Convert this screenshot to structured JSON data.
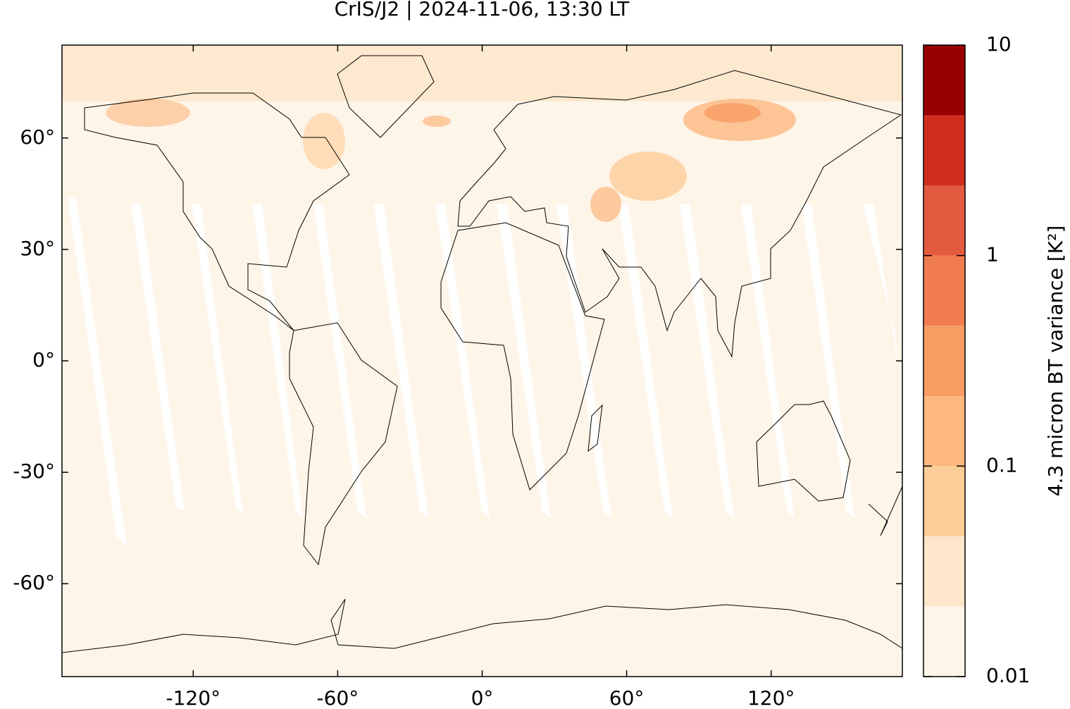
{
  "chart_data": {
    "type": "map",
    "title": "CrIS/J2 | 2024-11-06, 13:30 LT",
    "xlim": [
      -174.5,
      174.5
    ],
    "ylim": [
      -85,
      85
    ],
    "xticks": [
      {
        "value": -120,
        "label": "-120°"
      },
      {
        "value": -60,
        "label": "-60°"
      },
      {
        "value": 0,
        "label": "0°"
      },
      {
        "value": 60,
        "label": "60°"
      },
      {
        "value": 120,
        "label": "120°"
      }
    ],
    "yticks": [
      {
        "value": -60,
        "label": "-60°"
      },
      {
        "value": -30,
        "label": "-30°"
      },
      {
        "value": 0,
        "label": "0°"
      },
      {
        "value": 30,
        "label": "30°"
      },
      {
        "value": 60,
        "label": "60°"
      }
    ],
    "colorbar": {
      "label": "4.3 micron BT variance [K²]",
      "scale": "log",
      "lim": [
        0.01,
        10
      ],
      "ticks": [
        0.01,
        0.1,
        1,
        10
      ],
      "levels": [
        0.01,
        0.0215,
        0.0464,
        0.1,
        0.215,
        0.464,
        1,
        2.15,
        4.64,
        10
      ],
      "colors": [
        "#fef5e9",
        "#fde6c9",
        "#fdcd98",
        "#fcb87f",
        "#f99c63",
        "#f17d4f",
        "#e45a3f",
        "#cf2e1f",
        "#990000"
      ]
    }
  }
}
